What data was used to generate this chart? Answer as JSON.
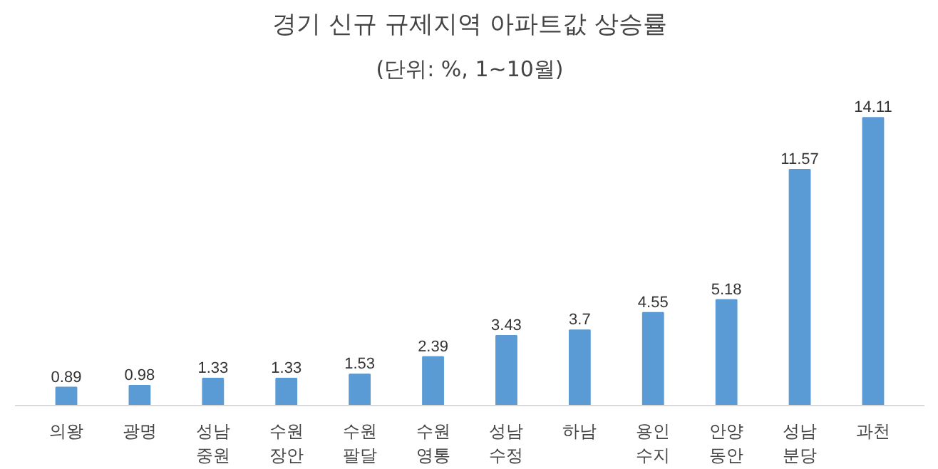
{
  "chart_data": {
    "type": "bar",
    "title": "경기 신규 규제지역 아파트값 상승률",
    "subtitle": "(단위: %, 1~10월)",
    "categories": [
      "의왕",
      "광명",
      "성남\n중원",
      "수원\n장안",
      "수원\n팔달",
      "수원\n영통",
      "성남\n수정",
      "하남",
      "용인\n수지",
      "안양\n동안",
      "성남\n분당",
      "과천"
    ],
    "values": [
      0.89,
      0.98,
      1.33,
      1.33,
      1.53,
      2.39,
      3.43,
      3.7,
      4.55,
      5.18,
      11.57,
      14.11
    ],
    "color": "#5b9bd5",
    "data_labels": true,
    "grid": false
  }
}
